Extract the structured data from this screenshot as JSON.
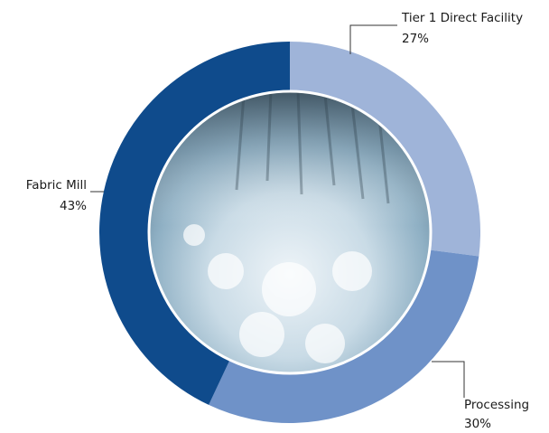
{
  "chart_data": {
    "type": "donut",
    "categories": [
      "Tier 1 Direct Facility",
      "Processing",
      "Fabric Mill"
    ],
    "values": [
      27,
      30,
      43
    ],
    "value_labels": [
      "27%",
      "30%",
      "43%"
    ],
    "colors": [
      "#9fb4d9",
      "#6f92c8",
      "#0f4b8c"
    ]
  }
}
